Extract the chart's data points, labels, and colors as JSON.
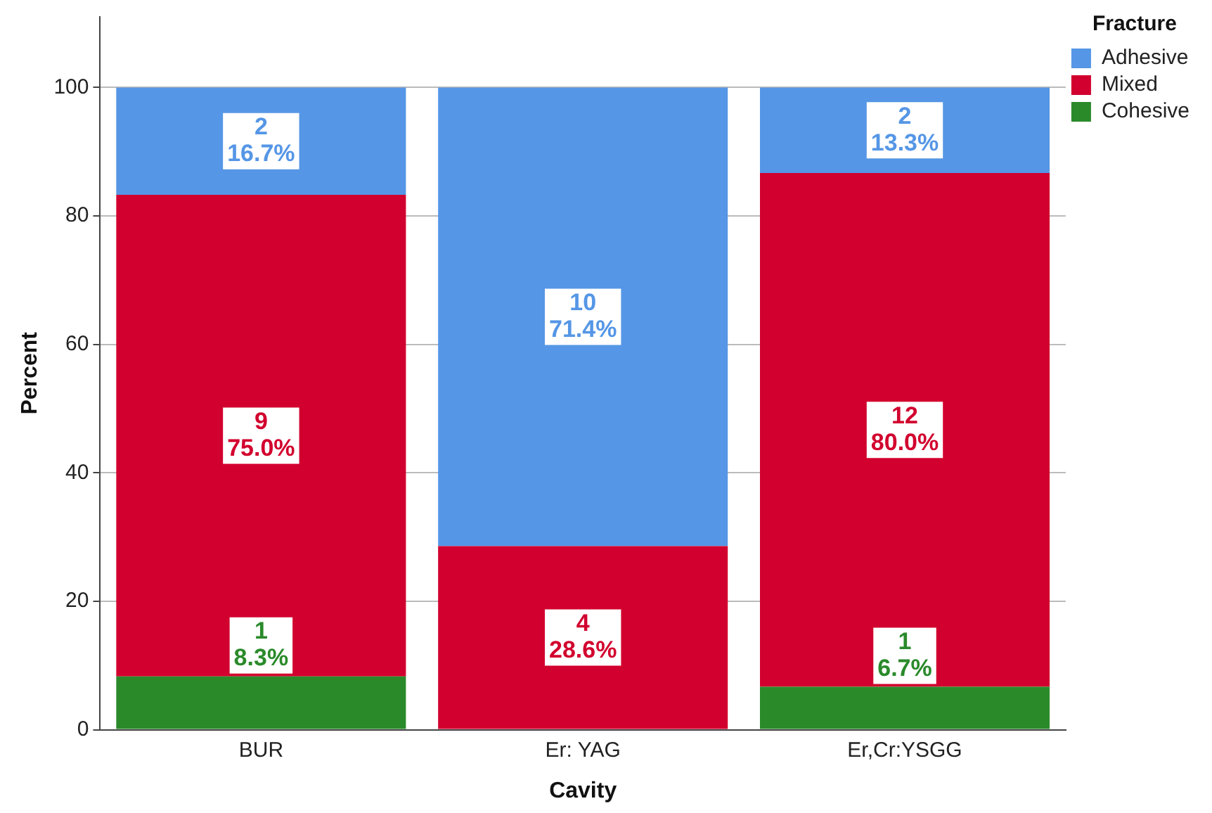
{
  "chart_data": {
    "type": "bar",
    "stacked": true,
    "xlabel": "Cavity",
    "ylabel": "Percent",
    "legend_title": "Fracture",
    "legend": "top right",
    "grid": "y",
    "categories": [
      "BUR",
      "Er: YAG",
      "Er,Cr:YSGG"
    ],
    "ylim": [
      0,
      111
    ],
    "yticks": [
      0,
      20,
      40,
      60,
      80,
      100
    ],
    "series": [
      {
        "name": "Cohesive",
        "color": "#2a8a2a",
        "values": [
          8.3,
          null,
          6.7
        ],
        "value_labels": [
          "1\n8.3%",
          null,
          "1\n6.7%"
        ]
      },
      {
        "name": "Mixed",
        "color": "#d2002e",
        "values": [
          75.0,
          28.6,
          80.0
        ],
        "value_labels": [
          "9\n75.0%",
          "4\n28.6%",
          "12\n80.0%"
        ]
      },
      {
        "name": "Adhesive",
        "color": "#5596e6",
        "values": [
          16.7,
          71.4,
          13.3
        ],
        "value_labels": [
          "2\n16.7%",
          "10\n71.4%",
          "2\n13.3%"
        ]
      }
    ]
  }
}
